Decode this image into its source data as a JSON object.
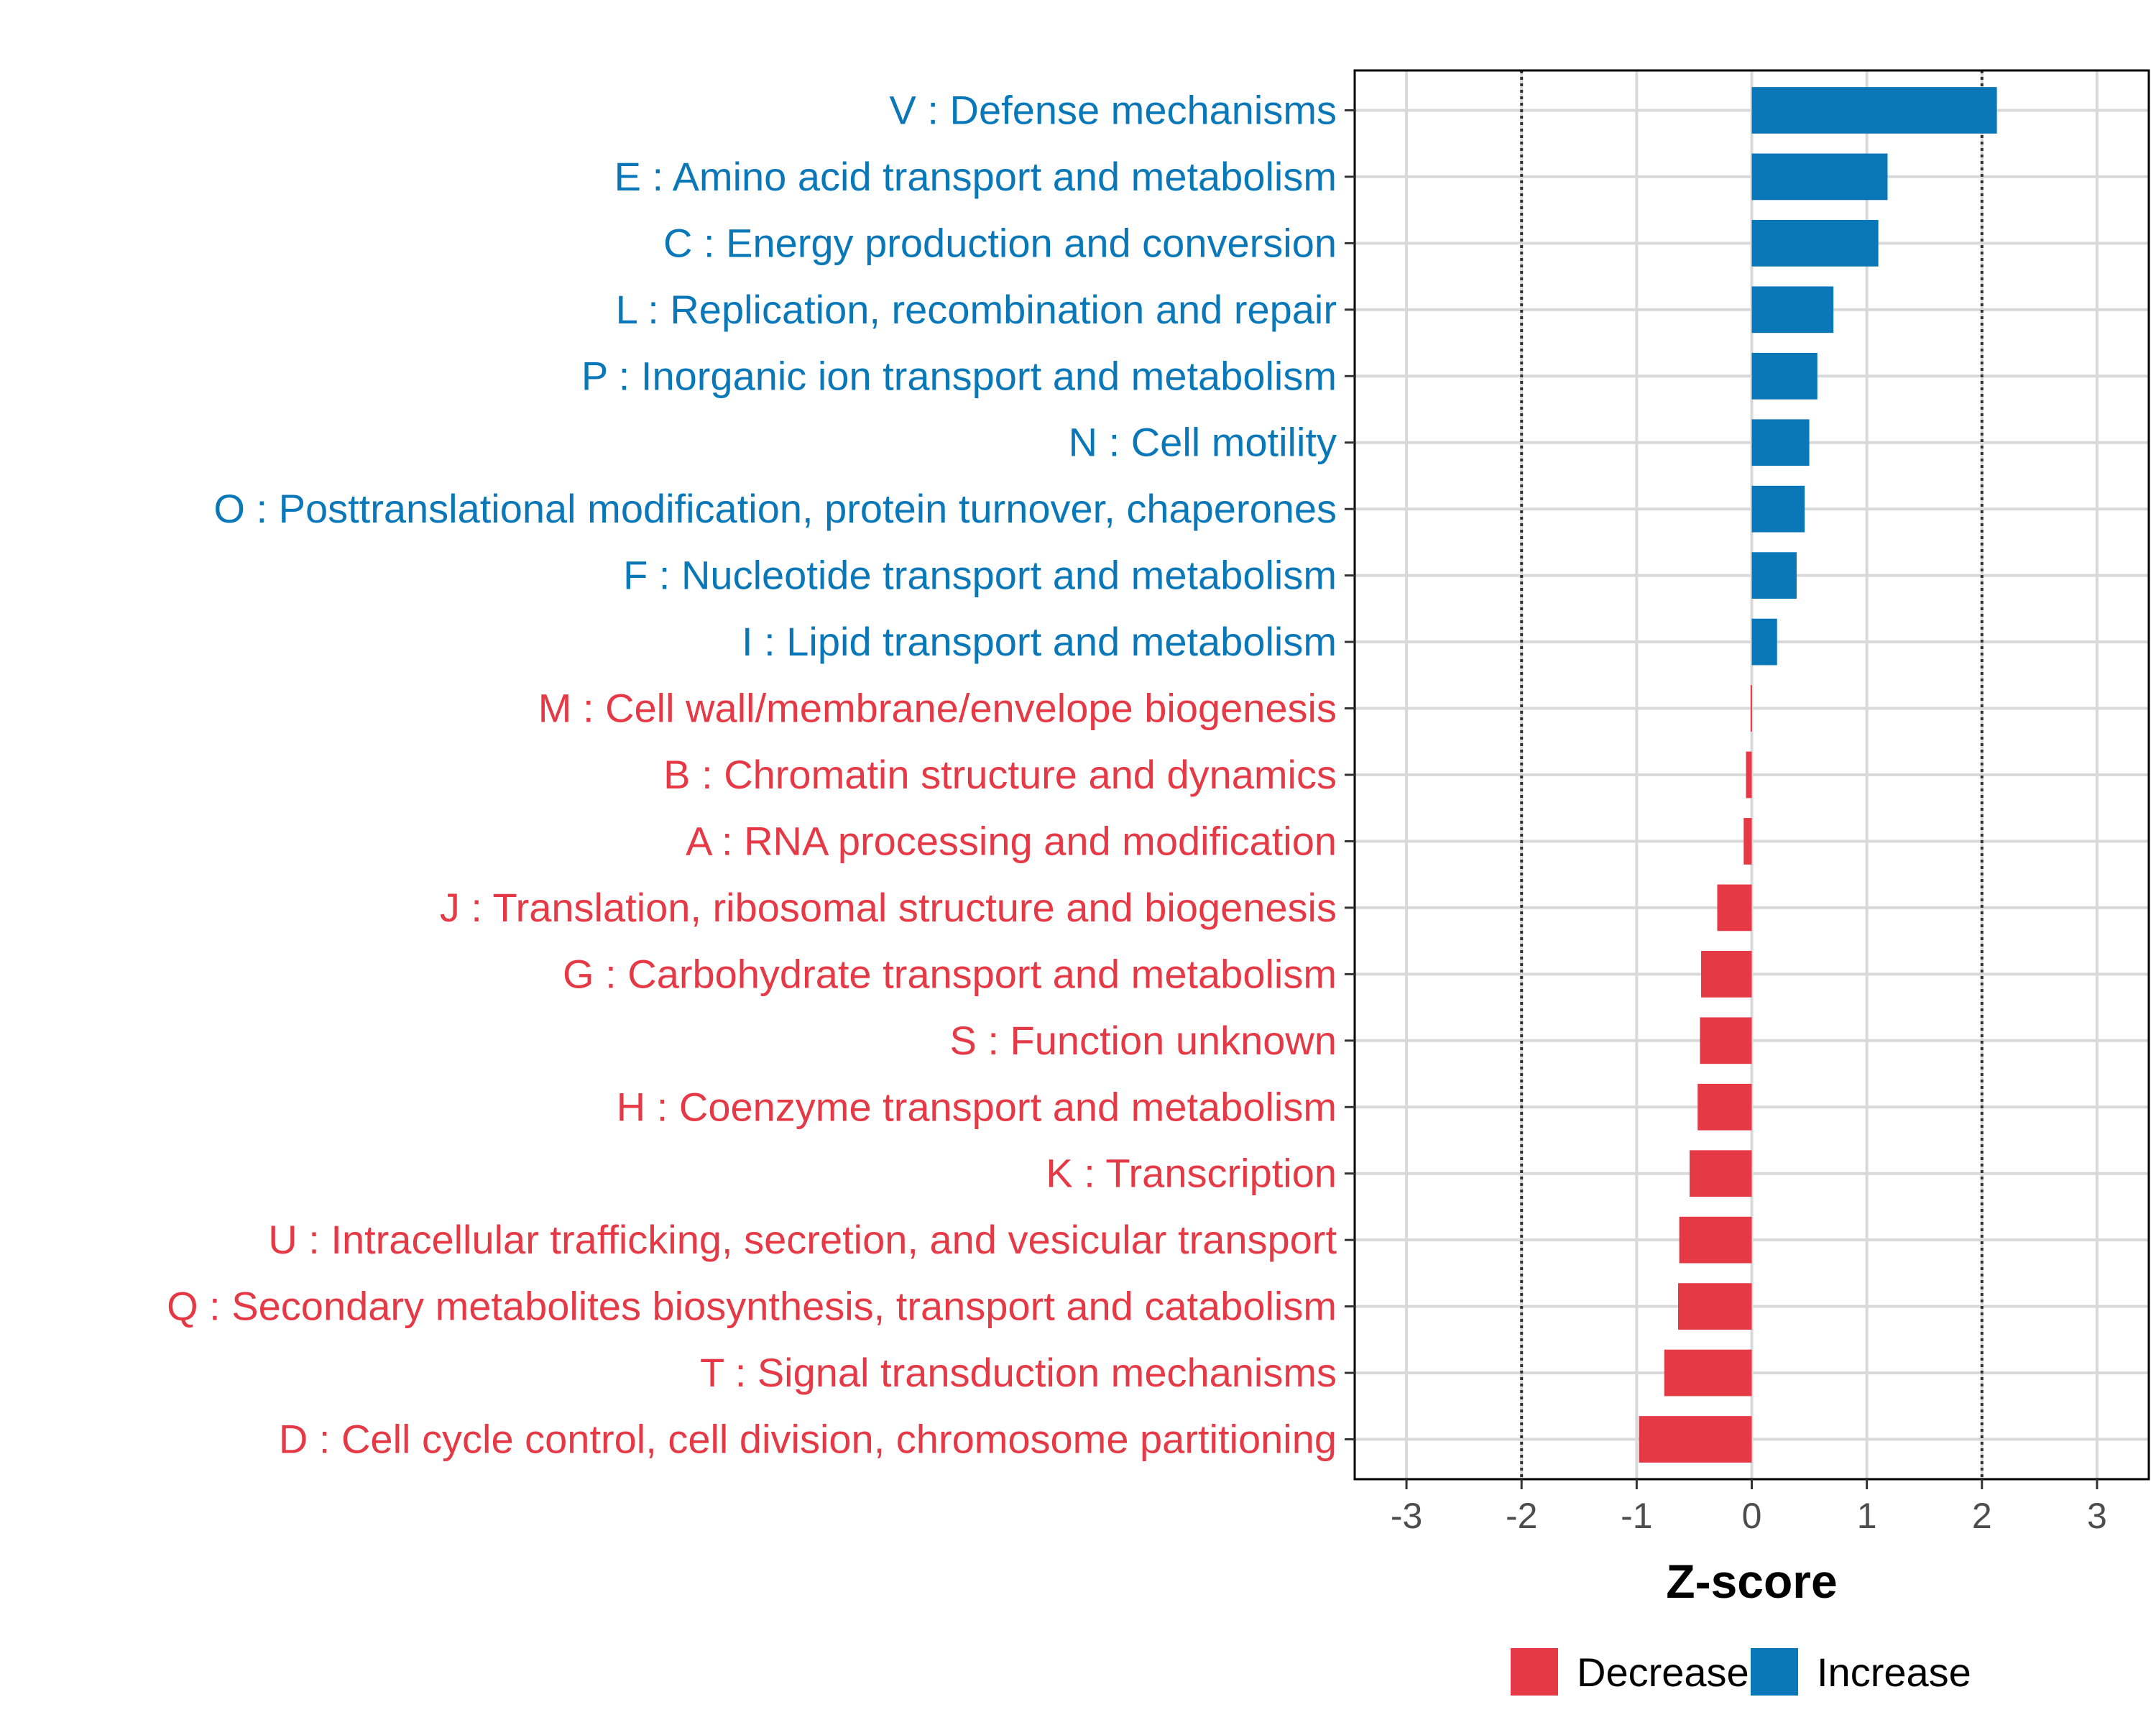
{
  "chart_data": {
    "type": "bar",
    "orientation": "horizontal",
    "xlabel": "Z-score",
    "xlim": [
      -3.45,
      3.45
    ],
    "xticks": [
      -3,
      -2,
      -1,
      0,
      1,
      2,
      3
    ],
    "xtick_labels": [
      "-3",
      "-2",
      "-1",
      "0",
      "1",
      "2",
      "3"
    ],
    "reference_lines": [
      -2,
      2
    ],
    "grid": true,
    "legend_position": "bottom",
    "colors": {
      "Decrease": "#e63946",
      "Increase": "#0a78b8"
    },
    "categories": [
      "V : Defense mechanisms",
      "E : Amino acid transport and metabolism",
      "C : Energy production and conversion",
      "L : Replication, recombination and repair",
      "P : Inorganic ion transport and metabolism",
      "N : Cell motility",
      "O : Posttranslational modification, protein turnover, chaperones",
      "F : Nucleotide transport and metabolism",
      "I : Lipid transport and metabolism",
      "M : Cell wall/membrane/envelope biogenesis",
      "B : Chromatin structure and dynamics",
      "A : RNA processing and modification",
      "J : Translation, ribosomal structure and biogenesis",
      "G : Carbohydrate transport and metabolism",
      "S : Function unknown",
      "H : Coenzyme transport and metabolism",
      "K : Transcription",
      "U : Intracellular trafficking, secretion, and vesicular transport",
      "Q : Secondary metabolites biosynthesis, transport and catabolism",
      "T : Signal transduction mechanisms",
      "D : Cell cycle control, cell division, chromosome partitioning"
    ],
    "values": [
      2.13,
      1.18,
      1.1,
      0.71,
      0.57,
      0.5,
      0.46,
      0.39,
      0.22,
      -0.01,
      -0.05,
      -0.07,
      -0.3,
      -0.44,
      -0.45,
      -0.47,
      -0.54,
      -0.63,
      -0.64,
      -0.76,
      -0.98
    ],
    "groups": [
      "Increase",
      "Increase",
      "Increase",
      "Increase",
      "Increase",
      "Increase",
      "Increase",
      "Increase",
      "Increase",
      "Decrease",
      "Decrease",
      "Decrease",
      "Decrease",
      "Decrease",
      "Decrease",
      "Decrease",
      "Decrease",
      "Decrease",
      "Decrease",
      "Decrease",
      "Decrease"
    ],
    "legend": [
      "Decrease",
      "Increase"
    ]
  }
}
